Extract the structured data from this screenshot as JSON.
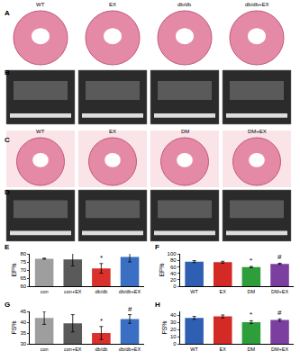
{
  "image_panels": [
    {
      "panel": "A",
      "captions": [
        "WT",
        "EX",
        "db/db",
        "db/db+EX"
      ]
    },
    {
      "panel": "B"
    },
    {
      "panel": "C",
      "captions": [
        "WT",
        "EX",
        "DM",
        "DM+EX"
      ]
    },
    {
      "panel": "D"
    }
  ],
  "chart_data": [
    {
      "panel": "E",
      "type": "bar",
      "y_label": "EF%",
      "categories": [
        "con",
        "con+EX",
        "db/db",
        "db/db+EX"
      ],
      "values": [
        77,
        76.5,
        71,
        78
      ],
      "errors": [
        0.3,
        4,
        3,
        3
      ],
      "colors": [
        "#9e9e9e",
        "#5a5a5a",
        "#d9312b",
        "#3b6fc4"
      ],
      "ylim": [
        60,
        80
      ],
      "yticks": [
        60,
        65,
        70,
        75,
        80
      ],
      "grid": false,
      "annotations": [
        {
          "category": "db/db",
          "text": "*"
        },
        {
          "category": "db/db+EX",
          "text": "#"
        }
      ]
    },
    {
      "panel": "F",
      "type": "bar",
      "y_label": "EF%",
      "categories": [
        "WT",
        "EX",
        "DM",
        "DM+EX"
      ],
      "values": [
        76,
        74,
        59,
        69
      ],
      "errors": [
        3,
        3,
        2,
        2
      ],
      "colors": [
        "#2f5fb3",
        "#d42a25",
        "#2e9e3a",
        "#7b3fa0"
      ],
      "ylim": [
        0,
        100
      ],
      "yticks": [
        0,
        20,
        40,
        60,
        80,
        100
      ],
      "grid": false,
      "annotations": [
        {
          "category": "DM",
          "text": "*"
        },
        {
          "category": "DM+EX",
          "text": "#"
        }
      ]
    },
    {
      "panel": "G",
      "type": "bar",
      "y_label": "FS%",
      "categories": [
        "con",
        "con+EX",
        "db/db",
        "db/db+EX"
      ],
      "values": [
        42,
        39.5,
        35,
        41.5
      ],
      "errors": [
        3,
        4,
        3,
        2
      ],
      "colors": [
        "#9e9e9e",
        "#5a5a5a",
        "#d9312b",
        "#3b6fc4"
      ],
      "ylim": [
        30,
        45
      ],
      "yticks": [
        30,
        35,
        40,
        45
      ],
      "grid": false,
      "annotations": [
        {
          "category": "db/db",
          "text": "*"
        },
        {
          "category": "db/db+EX",
          "text": "#"
        }
      ]
    },
    {
      "panel": "H",
      "type": "bar",
      "y_label": "FS%",
      "categories": [
        "WT",
        "EX",
        "DM",
        "DM+EX"
      ],
      "values": [
        36,
        38,
        30,
        33
      ],
      "errors": [
        2,
        2,
        2,
        1.5
      ],
      "colors": [
        "#2f5fb3",
        "#d42a25",
        "#2e9e3a",
        "#7b3fa0"
      ],
      "ylim": [
        0,
        45
      ],
      "yticks": [
        0,
        10,
        20,
        30,
        40
      ],
      "grid": false,
      "annotations": [
        {
          "category": "DM",
          "text": "*"
        },
        {
          "category": "DM+EX",
          "text": "#"
        }
      ]
    }
  ]
}
